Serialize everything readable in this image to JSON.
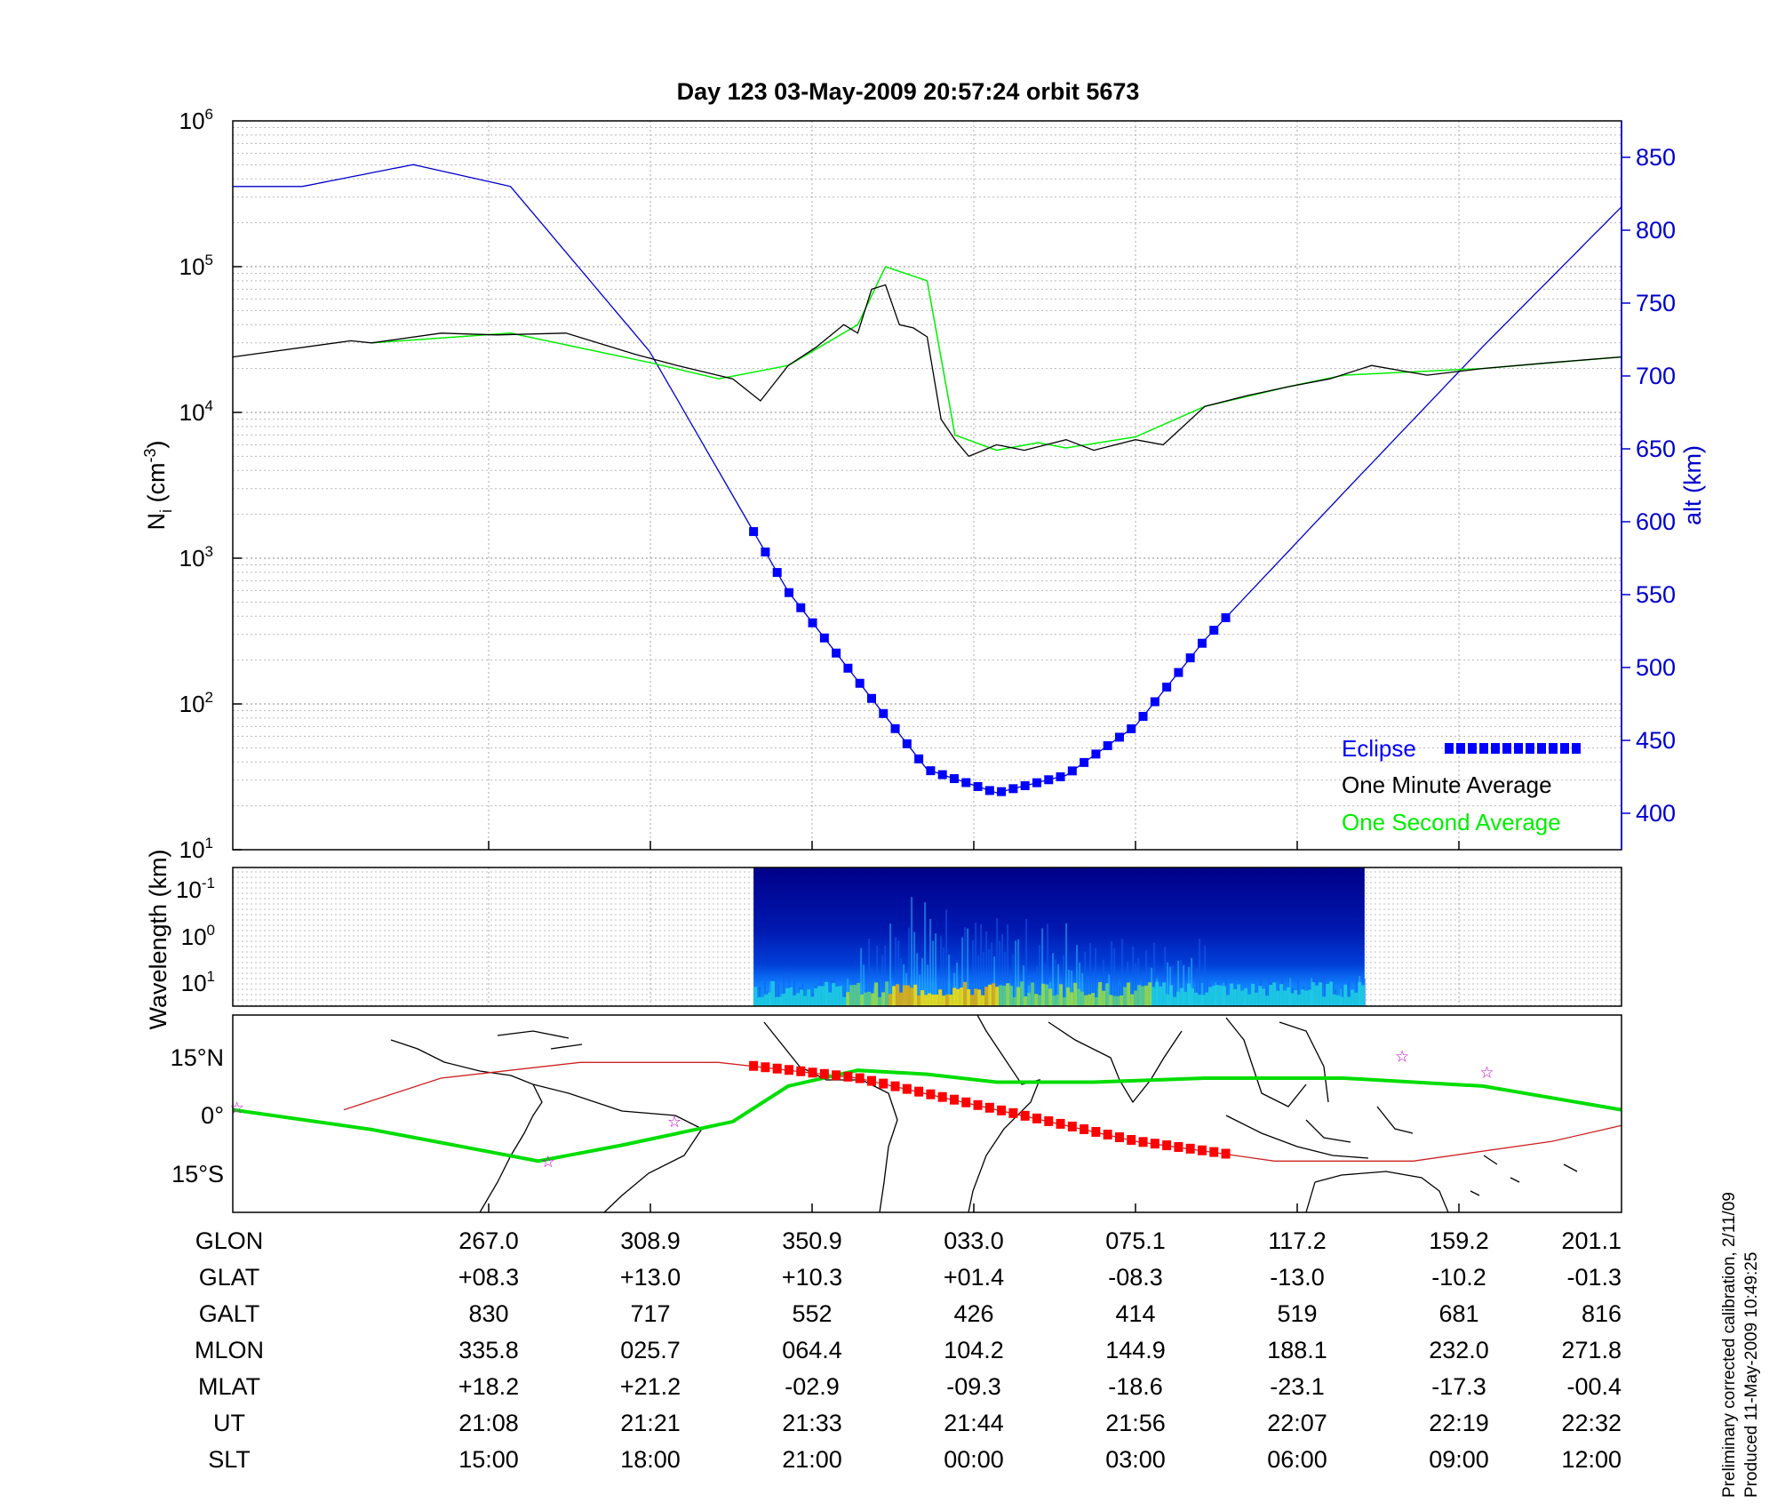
{
  "colors": {
    "axis": "#000000",
    "altitude": "#0000cc",
    "eclipse": "#0000ff",
    "minute_avg": "#000000",
    "second_avg": "#00ee00",
    "orbit_track": "#00dd00",
    "terminator_track": "#cc2222",
    "eclipse_track": "#ff0000",
    "star": "#cc00cc",
    "spectrogram_low": "#000088",
    "spectrogram_high": "#ffee00"
  },
  "chart_data": [
    {
      "type": "line",
      "title": "Day 123  03-May-2009 20:57:24   orbit 5673",
      "ylabel": {
        "base": "N",
        "sub": "i",
        "unit": " (cm",
        "sup": "-3",
        "close": ")"
      },
      "y_scale": "log",
      "ylim": [
        10,
        1000000
      ],
      "yticks": [
        {
          "base": "10",
          "exp": "1",
          "value": 10
        },
        {
          "base": "10",
          "exp": "2",
          "value": 100
        },
        {
          "base": "10",
          "exp": "3",
          "value": 1000
        },
        {
          "base": "10",
          "exp": "4",
          "value": 10000
        },
        {
          "base": "10",
          "exp": "5",
          "value": 100000
        },
        {
          "base": "10",
          "exp": "6",
          "value": 1000000
        }
      ],
      "y2label": "alt (km)",
      "y2lim": [
        375,
        875
      ],
      "y2ticks": [
        400,
        450,
        500,
        550,
        600,
        650,
        700,
        750,
        800,
        850
      ],
      "grid": true,
      "legend_position": "bottom-right",
      "legend": [
        "Eclipse",
        "One Minute Average",
        "One Second Average"
      ],
      "series": [
        {
          "name": "One Minute Average",
          "x": [
            0,
            0.085,
            0.1,
            0.15,
            0.19,
            0.24,
            0.29,
            0.32,
            0.36,
            0.38,
            0.4,
            0.42,
            0.44,
            0.45,
            0.46,
            0.47,
            0.48,
            0.49,
            0.5,
            0.51,
            0.52,
            0.53,
            0.55,
            0.57,
            0.6,
            0.62,
            0.65,
            0.67,
            0.7,
            0.73,
            0.76,
            0.79,
            0.82,
            0.86,
            0.9,
            0.95,
            1.0
          ],
          "y": [
            24000,
            31000,
            30000,
            35000,
            34000,
            35000,
            25000,
            21000,
            17000,
            12000,
            21000,
            28000,
            40000,
            35000,
            70000,
            75000,
            40000,
            38000,
            33000,
            9000,
            6500,
            5000,
            6000,
            5500,
            6500,
            5500,
            6500,
            6000,
            11000,
            13000,
            15000,
            17000,
            21000,
            18000,
            20000,
            22000,
            24000
          ]
        },
        {
          "name": "One Second Average",
          "x": [
            0.1,
            0.2,
            0.3,
            0.35,
            0.4,
            0.45,
            0.47,
            0.5,
            0.52,
            0.55,
            0.58,
            0.6,
            0.65,
            0.7,
            0.76,
            0.8,
            0.9,
            1.0
          ],
          "y": [
            30000,
            35000,
            22000,
            17000,
            21000,
            40000,
            100000,
            80000,
            7000,
            5500,
            6200,
            5700,
            6800,
            11000,
            15000,
            18000,
            20000,
            24000
          ]
        },
        {
          "name": "altitude",
          "axis": "y2",
          "x": [
            0,
            0.05,
            0.13,
            0.2,
            0.3,
            0.4,
            0.5,
            0.55,
            0.6,
            0.65,
            0.7,
            0.8,
            0.9,
            1.0
          ],
          "y": [
            830,
            830,
            845,
            830,
            717,
            552,
            430,
            414,
            426,
            460,
            519,
            620,
            720,
            816
          ]
        },
        {
          "name": "Eclipse",
          "axis": "y2",
          "x_range": [
            0.375,
            0.715
          ]
        }
      ]
    },
    {
      "type": "heatmap",
      "ylabel": "Wavelength (km)",
      "yticks": [
        {
          "base": "10",
          "exp": "-1"
        },
        {
          "base": "10",
          "exp": "0"
        },
        {
          "base": "10",
          "exp": "1"
        }
      ],
      "x_range": [
        0.375,
        0.815
      ]
    },
    {
      "type": "map",
      "yticks": [
        "15°N",
        "0°",
        "15°S"
      ],
      "ylim": [
        -25,
        25
      ],
      "series": [
        {
          "name": "orbit track",
          "x": [
            0,
            0.1,
            0.22,
            0.28,
            0.36,
            0.4,
            0.45,
            0.5,
            0.55,
            0.62,
            0.7,
            0.8,
            0.9,
            1.0
          ],
          "y": [
            1,
            -4,
            -12,
            -8,
            -2,
            7,
            11,
            10,
            8,
            8,
            9,
            9,
            7,
            1
          ]
        },
        {
          "name": "solar terminator",
          "x": [
            0.08,
            0.15,
            0.25,
            0.35,
            0.45,
            0.55,
            0.65,
            0.75,
            0.85,
            0.95,
            1.0
          ],
          "y": [
            1,
            9,
            13,
            13,
            9,
            1,
            -7,
            -12,
            -12,
            -7,
            -3
          ]
        },
        {
          "name": "eclipse track",
          "x_range": [
            0.375,
            0.715
          ]
        }
      ]
    }
  ],
  "table": {
    "row_labels": [
      "GLON",
      "GLAT",
      "GALT",
      "MLON",
      "MLAT",
      "UT",
      "SLT"
    ],
    "columns": [
      [
        "267.0",
        "+08.3",
        "830",
        "335.8",
        "+18.2",
        "21:08",
        "15:00"
      ],
      [
        "308.9",
        "+13.0",
        "717",
        "025.7",
        "+21.2",
        "21:21",
        "18:00"
      ],
      [
        "350.9",
        "+10.3",
        "552",
        "064.4",
        "-02.9",
        "21:33",
        "21:00"
      ],
      [
        "033.0",
        "+01.4",
        "426",
        "104.2",
        "-09.3",
        "21:44",
        "00:00"
      ],
      [
        "075.1",
        "-08.3",
        "414",
        "144.9",
        "-18.6",
        "21:56",
        "03:00"
      ],
      [
        "117.2",
        "-13.0",
        "519",
        "188.1",
        "-23.1",
        "22:07",
        "06:00"
      ],
      [
        "159.2",
        "-10.2",
        "681",
        "232.0",
        "-17.3",
        "22:19",
        "09:00"
      ],
      [
        "201.1",
        "-01.3",
        "816",
        "271.8",
        "-00.4",
        "22:32",
        "12:00"
      ]
    ]
  },
  "footer": {
    "line1": "Preliminary corrected calibration, 2/11/09",
    "line2": "Produced 11-May-2009 10:49:25"
  }
}
